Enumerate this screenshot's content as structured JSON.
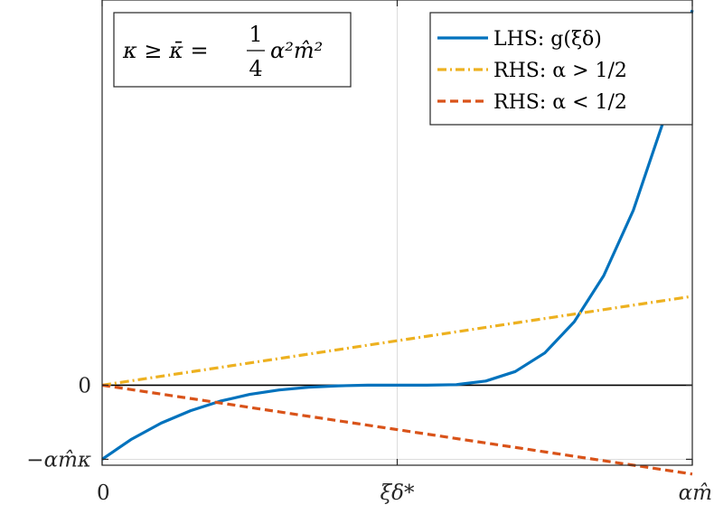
{
  "chart_data": {
    "type": "line",
    "title": "",
    "xlabel": "",
    "ylabel": "",
    "xlim": [
      0,
      1
    ],
    "ylim": [
      -0.27,
      1.3
    ],
    "x_ticks": [
      {
        "value": 0,
        "label": "0"
      },
      {
        "value": 0.5,
        "label": "ξδ*"
      },
      {
        "value": 1,
        "label": "αm̂"
      }
    ],
    "y_ticks": [
      {
        "value": 0,
        "label": "0"
      },
      {
        "value": -0.25,
        "label": "−αm̂κ"
      }
    ],
    "grid": {
      "x": [
        0.5
      ],
      "y": [
        -0.25,
        0
      ]
    },
    "legend": {
      "placement": "top-right",
      "entries": [
        {
          "series": 0,
          "text": "LHS: g(ξδ)"
        },
        {
          "series": 1,
          "text": "RHS: α > 1/2"
        },
        {
          "series": 2,
          "text": "RHS: α < 1/2"
        }
      ]
    },
    "annotation": {
      "lhs": "κ ≥ κ̄ =",
      "frac_num": "1",
      "frac_den": "4",
      "rhs": "α²m̂²"
    },
    "series": [
      {
        "name": "LHS: g(ξδ)",
        "style": "solid",
        "color": "#0072BD",
        "x": [
          0,
          0.05,
          0.1,
          0.15,
          0.2,
          0.25,
          0.3,
          0.35,
          0.4,
          0.45,
          0.5,
          0.55,
          0.6,
          0.65,
          0.7,
          0.75,
          0.8,
          0.85,
          0.9,
          0.95,
          1.0
        ],
        "y": [
          -0.25,
          -0.182,
          -0.128,
          -0.086,
          -0.054,
          -0.031,
          -0.016,
          -0.007,
          -0.002,
          0.0,
          0.0,
          0.0,
          0.002,
          0.014,
          0.046,
          0.109,
          0.214,
          0.37,
          0.59,
          0.885,
          1.266
        ]
      },
      {
        "name": "RHS: α > 1/2",
        "style": "dashdot",
        "color": "#EDB120",
        "x": [
          0,
          1
        ],
        "y": [
          0,
          0.3
        ]
      },
      {
        "name": "RHS: α < 1/2",
        "style": "dashed",
        "color": "#D95319",
        "x": [
          0,
          1
        ],
        "y": [
          0,
          -0.3
        ]
      }
    ]
  }
}
